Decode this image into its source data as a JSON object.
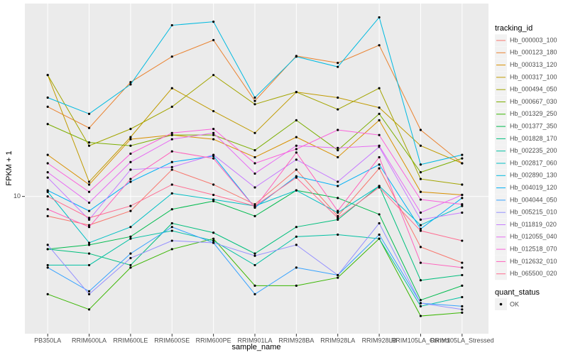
{
  "chart_data": {
    "type": "line",
    "x_label": "sample_name",
    "y_label": "FPKM + 1",
    "legend_title": "tracking_id",
    "shape_legend_title": "quant_status",
    "shape_legend_labels": [
      "OK"
    ],
    "log_y": true,
    "ylim": [
      4.1,
      35
    ],
    "yticks": [
      10
    ],
    "grid": true,
    "categories": [
      "PB350LA",
      "RRIM600LA",
      "RRIM600LE",
      "RRIM600SE",
      "RRIM600PE",
      "RRIM901LA",
      "RRIM928BA",
      "RRIM928LA",
      "RRIM928LB",
      "RRIM105LA_Control",
      "RRIM105LA_Stressed"
    ],
    "series": [
      {
        "name": "Hb_000003_100",
        "color": "#F8766D",
        "values": [
          8.8,
          8.3,
          9.1,
          11.9,
          10.8,
          9.5,
          11.9,
          8.8,
          12.0,
          7.2,
          6.5
        ]
      },
      {
        "name": "Hb_000123_180",
        "color": "#EA8331",
        "values": [
          17.9,
          15.6,
          21.0,
          24.8,
          27.6,
          18.6,
          24.9,
          23.8,
          26.7,
          15.4,
          12.4
        ]
      },
      {
        "name": "Hb_000313_120",
        "color": "#D89000",
        "values": [
          13.1,
          10.8,
          14.5,
          14.9,
          14.5,
          12.9,
          14.7,
          12.9,
          16.4,
          10.3,
          10.1
        ]
      },
      {
        "name": "Hb_000317_100",
        "color": "#C09B00",
        "values": [
          22.0,
          11.0,
          14.7,
          20.2,
          17.4,
          15.1,
          19.7,
          19.0,
          17.8,
          13.9,
          12.4
        ]
      },
      {
        "name": "Hb_000494_050",
        "color": "#A3A500",
        "values": [
          22.0,
          13.9,
          15.5,
          17.9,
          22.0,
          18.2,
          19.7,
          17.6,
          20.2,
          11.2,
          10.8
        ]
      },
      {
        "name": "Hb_000667_030",
        "color": "#7CAE00",
        "values": [
          16.0,
          14.2,
          13.9,
          14.9,
          14.9,
          13.5,
          16.4,
          13.5,
          17.1,
          11.7,
          12.8
        ]
      },
      {
        "name": "Hb_001329_250",
        "color": "#39B600",
        "values": [
          5.3,
          4.8,
          6.3,
          7.1,
          7.6,
          5.6,
          5.6,
          5.9,
          7.6,
          4.6,
          4.7
        ]
      },
      {
        "name": "Hb_001377_350",
        "color": "#00BB4E",
        "values": [
          7.1,
          7.3,
          7.7,
          9.2,
          9.7,
          8.8,
          10.4,
          9.9,
          8.9,
          5.1,
          5.6
        ]
      },
      {
        "name": "Hb_001828_170",
        "color": "#00BF7D",
        "values": [
          7.1,
          6.9,
          6.4,
          8.4,
          7.9,
          6.9,
          8.2,
          8.6,
          10.7,
          5.8,
          6.0
        ]
      },
      {
        "name": "Hb_002235_200",
        "color": "#00C1A3",
        "values": [
          6.4,
          6.4,
          7.6,
          8.0,
          7.5,
          6.4,
          7.7,
          7.8,
          7.6,
          4.9,
          5.2
        ]
      },
      {
        "name": "Hb_002817_060",
        "color": "#00BFC4",
        "values": [
          10.3,
          7.4,
          8.2,
          10.2,
          9.8,
          9.4,
          10.4,
          9.0,
          10.7,
          8.3,
          9.4
        ]
      },
      {
        "name": "Hb_002890_130",
        "color": "#00BAE0",
        "values": [
          19.0,
          17.1,
          20.7,
          30.4,
          31.1,
          19.0,
          24.8,
          23.2,
          32.0,
          12.3,
          13.1
        ]
      },
      {
        "name": "Hb_004019_120",
        "color": "#00B0F6",
        "values": [
          10.4,
          9.1,
          11.0,
          12.5,
          13.0,
          9.3,
          11.4,
          10.7,
          12.3,
          8.1,
          9.9
        ]
      },
      {
        "name": "Hb_004044_050",
        "color": "#35A2FF",
        "values": [
          6.3,
          5.4,
          6.9,
          8.2,
          7.4,
          5.3,
          6.3,
          6.0,
          7.8,
          5.0,
          4.9
        ]
      },
      {
        "name": "Hb_005215_010",
        "color": "#9590FF",
        "values": [
          7.3,
          5.3,
          6.7,
          7.5,
          7.4,
          6.8,
          7.3,
          6.0,
          8.4,
          5.0,
          4.8
        ]
      },
      {
        "name": "Hb_011819_020",
        "color": "#C77CFF",
        "values": [
          11.3,
          8.6,
          11.9,
          12.1,
          13.1,
          10.6,
          12.7,
          11.0,
          13.8,
          8.6,
          9.0
        ]
      },
      {
        "name": "Hb_012055_040",
        "color": "#E76BF3",
        "values": [
          11.7,
          9.6,
          12.5,
          14.5,
          15.1,
          11.6,
          13.9,
          13.7,
          13.9,
          9.0,
          10.1
        ]
      },
      {
        "name": "Hb_012518_070",
        "color": "#FA62DB",
        "values": [
          12.4,
          10.3,
          13.2,
          15.1,
          15.5,
          12.4,
          13.6,
          15.4,
          14.9,
          9.8,
          9.5
        ]
      },
      {
        "name": "Hb_012632_010",
        "color": "#FF62BC",
        "values": [
          9.2,
          8.2,
          11.2,
          13.4,
          12.8,
          9.3,
          13.3,
          9.1,
          12.9,
          6.5,
          6.3
        ]
      },
      {
        "name": "Hb_065500_020",
        "color": "#FF6C91",
        "values": [
          10.0,
          8.7,
          9.4,
          10.8,
          10.1,
          9.4,
          11.3,
          8.7,
          10.6,
          8.0,
          7.5
        ]
      }
    ]
  }
}
